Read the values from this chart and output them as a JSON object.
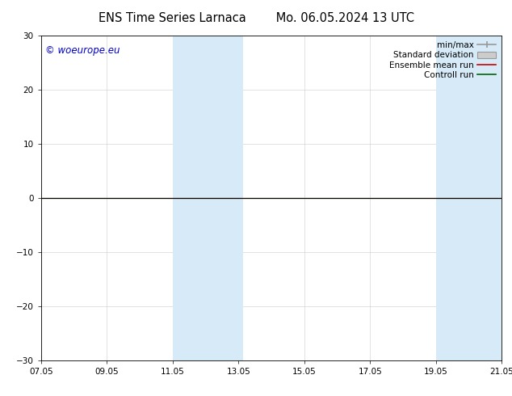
{
  "title_left": "ENS Time Series Larnaca",
  "title_right": "Mo. 06.05.2024 13 UTC",
  "watermark": "© woeurope.eu",
  "watermark_color": "#0000cc",
  "ylim": [
    -30,
    30
  ],
  "yticks": [
    -30,
    -20,
    -10,
    0,
    10,
    20,
    30
  ],
  "xtick_labels": [
    "07.05",
    "09.05",
    "11.05",
    "13.05",
    "15.05",
    "17.05",
    "19.05",
    "21.05"
  ],
  "xtick_positions": [
    0,
    2,
    4,
    6,
    8,
    10,
    12,
    14
  ],
  "x_start": 0,
  "x_end": 14,
  "shaded_bands": [
    {
      "x_start": 4.0,
      "x_end": 6.15
    },
    {
      "x_start": 12.0,
      "x_end": 14.0
    }
  ],
  "shade_color": "#d6eaf8",
  "shade_alpha": 1.0,
  "control_run_color": "#006400",
  "ensemble_mean_color": "#cc0000",
  "minmax_color": "#999999",
  "stddev_color": "#cccccc",
  "bg_color": "#ffffff",
  "legend_labels": [
    "min/max",
    "Standard deviation",
    "Ensemble mean run",
    "Controll run"
  ],
  "zero_line_color": "#000000",
  "grid_color": "#cccccc",
  "title_fontsize": 10.5,
  "tick_fontsize": 7.5,
  "watermark_fontsize": 8.5,
  "legend_fontsize": 7.5
}
